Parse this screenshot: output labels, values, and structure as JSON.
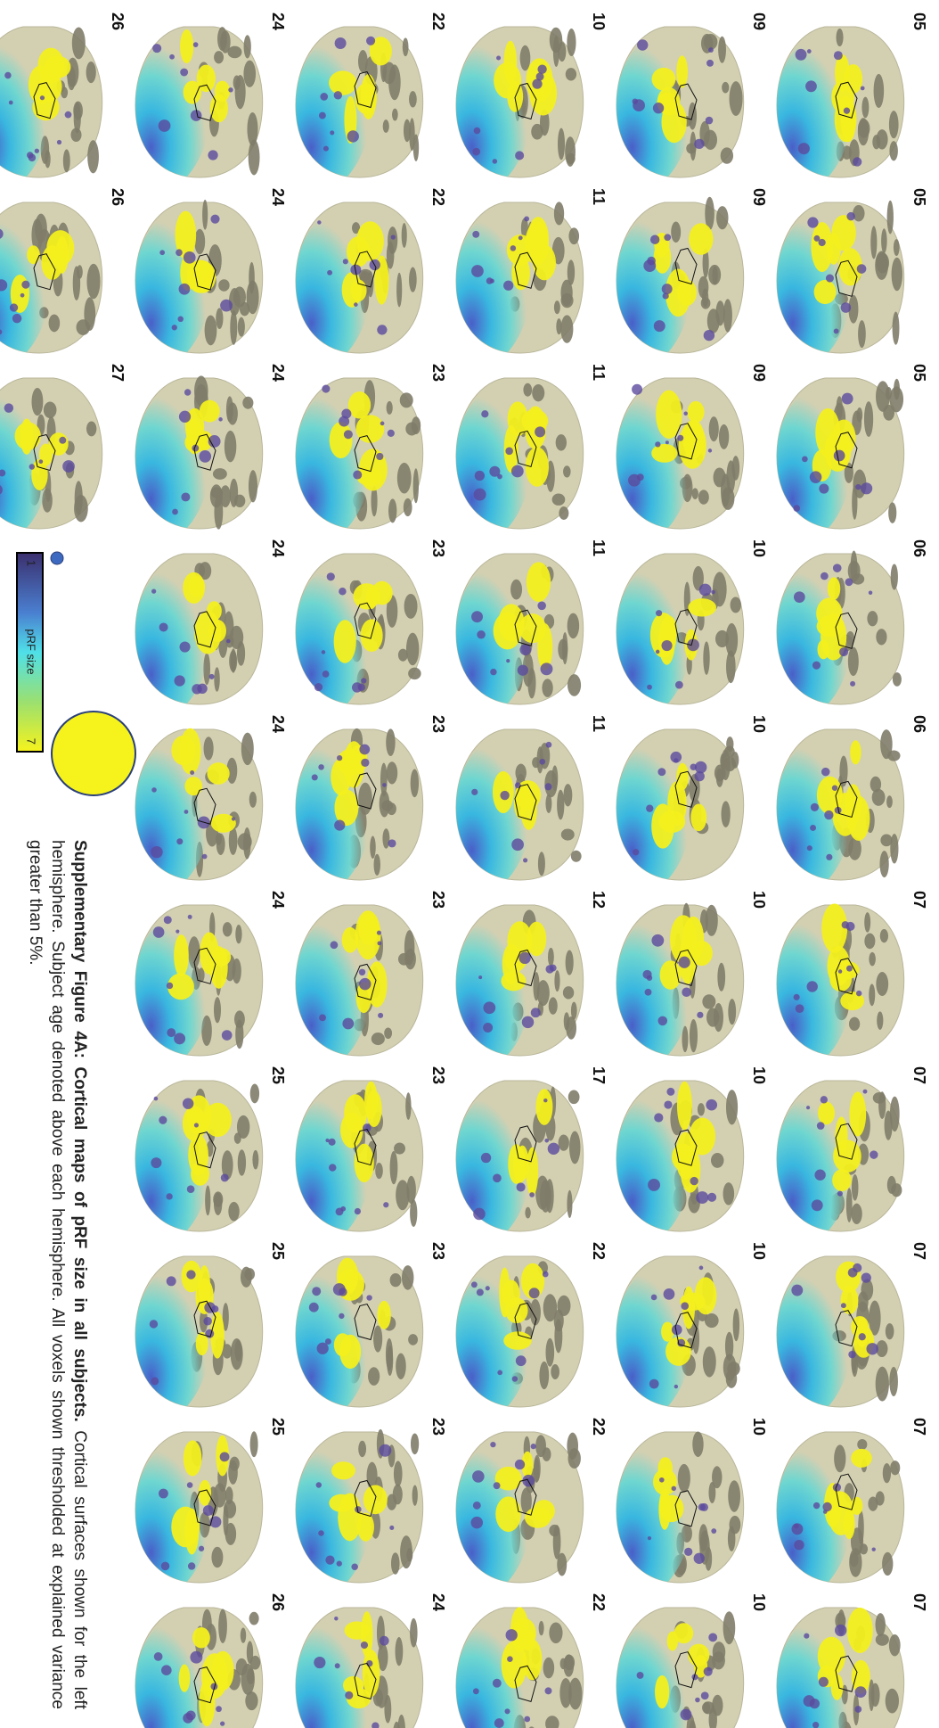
{
  "subjects": [
    "05",
    "05",
    "05",
    "06",
    "06",
    "07",
    "07",
    "07",
    "07",
    "07",
    "09",
    "09",
    "09",
    "10",
    "10",
    "10",
    "10",
    "10",
    "10",
    "10",
    "10",
    "11",
    "11",
    "11",
    "11",
    "12",
    "17",
    "22",
    "22",
    "22",
    "22",
    "22",
    "23",
    "23",
    "23",
    "23",
    "23",
    "23",
    "23",
    "24",
    "24",
    "24",
    "24",
    "24",
    "24",
    "24",
    "25",
    "25",
    "25",
    "26",
    "26",
    "26",
    "27"
  ],
  "legend": {
    "title": "pRF size",
    "min": "1",
    "max": "7"
  },
  "caption": {
    "label": "Supplementary Figure 4A: Cortical maps of pRF size in all subjects.",
    "text": "Cortical surfaces shown for the left hemisphere. Subject age denoted above each hemisphere. All voxels shown thresholded at explained variance greater than 5%."
  }
}
